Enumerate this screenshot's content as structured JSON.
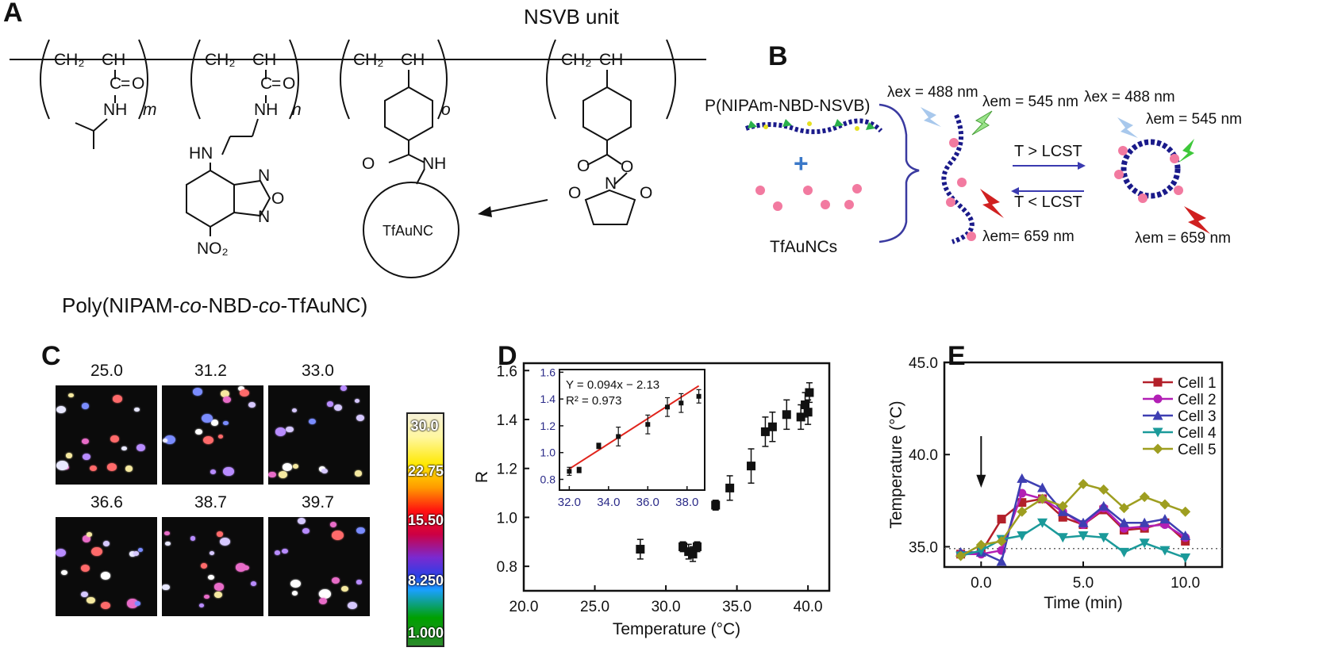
{
  "panels": {
    "a": "A",
    "b": "B",
    "c": "C",
    "d": "D",
    "e": "E"
  },
  "panel_a": {
    "nsvb_label": "NSVB unit",
    "ch2": "CH₂",
    "ch": "CH",
    "co": "C",
    "o": "O",
    "nh": "NH",
    "hn": "HN",
    "n": "N",
    "sub_m": "m",
    "sub_n": "n",
    "sub_o": "o",
    "no2": "NO₂",
    "tfaunc": "TfAuNC",
    "title_pre": "Poly(NIPAM-",
    "title_co1": "co",
    "title_mid": "-NBD-",
    "title_co2": "co",
    "title_post": "-TfAuNC)"
  },
  "panel_b": {
    "polymer_label": "P(NIPAm-NBD-NSVB)",
    "nc_label": "TfAuNCs",
    "ex1": "λex = 488 nm",
    "em1": "λem = 545 nm",
    "ex2": "λex = 488 nm",
    "em2": "λem = 545 nm",
    "em3": "λem= 659 nm",
    "em4": "λem = 659 nm",
    "t_gt": "T > LCST",
    "t_lt": "T < LCST",
    "plus": "+"
  },
  "panel_c": {
    "temps": [
      "25.0",
      "31.2",
      "33.0",
      "36.6",
      "38.7",
      "39.7"
    ],
    "colorbar_labels": [
      "30.0",
      "22.75",
      "15.50",
      "8.250",
      "1.000"
    ]
  },
  "chart_data": [
    {
      "id": "D-main",
      "type": "scatter",
      "xlabel": "Temperature (°C)",
      "ylabel": "R",
      "xlim": [
        20,
        41.5
      ],
      "ylim": [
        0.7,
        1.63
      ],
      "xticks": [
        "20.0",
        "25.0",
        "30.0",
        "35.0",
        "40.0"
      ],
      "yticks": [
        "0.8",
        "1.0",
        "1.2",
        "1.4",
        "1.6"
      ],
      "points": [
        {
          "x": 28.2,
          "y": 0.87,
          "err": 0.04
        },
        {
          "x": 31.2,
          "y": 0.88,
          "err": 0.02
        },
        {
          "x": 31.6,
          "y": 0.86,
          "err": 0.03
        },
        {
          "x": 31.9,
          "y": 0.85,
          "err": 0.03
        },
        {
          "x": 32.2,
          "y": 0.88,
          "err": 0.02
        },
        {
          "x": 33.5,
          "y": 1.05,
          "err": 0.02
        },
        {
          "x": 34.5,
          "y": 1.12,
          "err": 0.05
        },
        {
          "x": 36.0,
          "y": 1.21,
          "err": 0.07
        },
        {
          "x": 37.0,
          "y": 1.35,
          "err": 0.06
        },
        {
          "x": 37.5,
          "y": 1.37,
          "err": 0.06
        },
        {
          "x": 38.5,
          "y": 1.42,
          "err": 0.06
        },
        {
          "x": 39.5,
          "y": 1.41,
          "err": 0.05
        },
        {
          "x": 39.8,
          "y": 1.46,
          "err": 0.05
        },
        {
          "x": 40.0,
          "y": 1.43,
          "err": 0.05
        },
        {
          "x": 40.1,
          "y": 1.51,
          "err": 0.04
        }
      ]
    },
    {
      "id": "D-inset",
      "type": "scatter",
      "equation": "Y = 0.094x − 2.13",
      "r2": "R² = 0.973",
      "xlim": [
        31.5,
        38.9
      ],
      "ylim": [
        0.72,
        1.62
      ],
      "xticks": [
        "32.0",
        "34.0",
        "36.0",
        "38.0"
      ],
      "yticks": [
        "0.8",
        "1.0",
        "1.2",
        "1.4",
        "1.6"
      ],
      "fit": {
        "slope": 0.094,
        "intercept": -2.13,
        "x0": 32.0,
        "x1": 38.6
      },
      "points": [
        {
          "x": 32.0,
          "y": 0.86,
          "err": 0.03
        },
        {
          "x": 32.5,
          "y": 0.87,
          "err": 0.02
        },
        {
          "x": 33.5,
          "y": 1.05,
          "err": 0.02
        },
        {
          "x": 34.5,
          "y": 1.12,
          "err": 0.07
        },
        {
          "x": 36.0,
          "y": 1.21,
          "err": 0.07
        },
        {
          "x": 37.0,
          "y": 1.34,
          "err": 0.07
        },
        {
          "x": 37.7,
          "y": 1.37,
          "err": 0.07
        },
        {
          "x": 38.6,
          "y": 1.42,
          "err": 0.05
        }
      ]
    },
    {
      "id": "E",
      "type": "line",
      "xlabel": "Time (min)",
      "ylabel": "Temperature (°C)",
      "xlim": [
        -1.8,
        11.8
      ],
      "ylim": [
        33.9,
        45.0
      ],
      "xticks": [
        "0.0",
        "5.0",
        "10.0"
      ],
      "yticks": [
        "35.0",
        "40.0",
        "45.0"
      ],
      "baseline": 34.9,
      "arrow_x": 0,
      "x": [
        -1,
        0,
        1,
        2,
        3,
        4,
        5,
        6,
        7,
        8,
        9,
        10
      ],
      "series": [
        {
          "name": "Cell 1",
          "color": "#b3202a",
          "marker": "square",
          "values": [
            34.6,
            34.7,
            36.5,
            37.4,
            37.6,
            36.6,
            36.2,
            37.0,
            35.9,
            36.0,
            36.3,
            35.3
          ]
        },
        {
          "name": "Cell 2",
          "color": "#b21fb5",
          "marker": "circle",
          "values": [
            34.6,
            34.6,
            34.8,
            37.9,
            37.6,
            36.9,
            36.2,
            37.1,
            36.0,
            36.1,
            36.2,
            35.5
          ]
        },
        {
          "name": "Cell 3",
          "color": "#3e3fb2",
          "marker": "triangle-up",
          "values": [
            34.7,
            34.7,
            34.2,
            38.7,
            38.2,
            36.9,
            36.3,
            37.2,
            36.3,
            36.3,
            36.5,
            35.6
          ]
        },
        {
          "name": "Cell 4",
          "color": "#1b9a9a",
          "marker": "triangle-down",
          "values": [
            34.5,
            34.8,
            35.4,
            35.6,
            36.3,
            35.5,
            35.6,
            35.5,
            34.7,
            35.2,
            34.8,
            34.4
          ]
        },
        {
          "name": "Cell 5",
          "color": "#9e9e20",
          "marker": "diamond",
          "values": [
            34.5,
            35.1,
            35.3,
            36.9,
            37.6,
            37.2,
            38.4,
            38.1,
            37.1,
            37.7,
            37.3,
            36.9
          ]
        }
      ]
    }
  ]
}
